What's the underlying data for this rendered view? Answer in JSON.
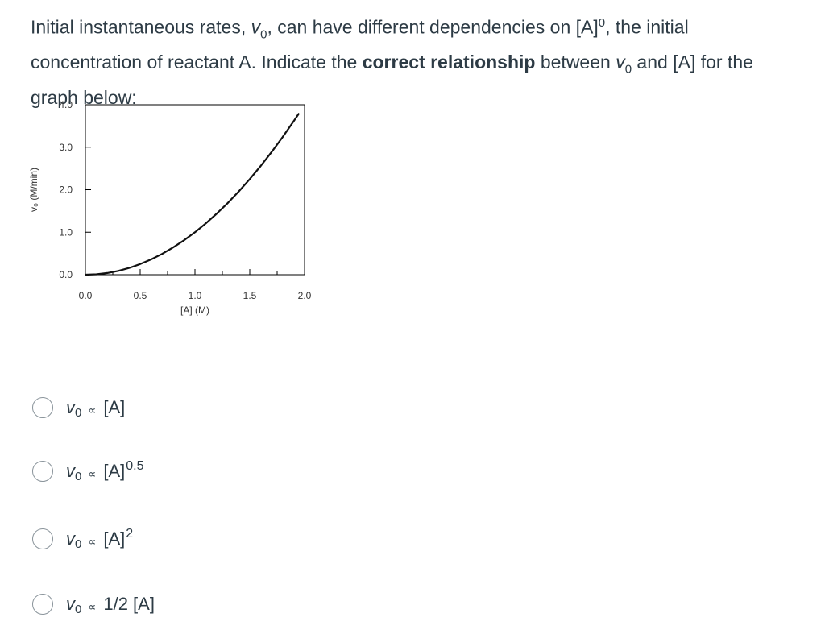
{
  "question": {
    "part1": "Initial instantaneous rates, ",
    "v_symbol": "v",
    "v_sub": "0",
    "part2": ", can have different dependencies on [A]",
    "part2_sup": "0",
    "part3": ", the initial concentration of reactant A. Indicate the ",
    "bold": "correct relationship",
    "part4": " between ",
    "part5": " and [A] for the graph below:"
  },
  "chart_data": {
    "type": "line",
    "xlabel": "[A] (M)",
    "ylabel": "v₀ (M/min)",
    "xlim": [
      0,
      2.0
    ],
    "ylim": [
      0,
      4.0
    ],
    "xticks": [
      "0.0",
      "0.5",
      "1.0",
      "1.5",
      "2.0"
    ],
    "yticks": [
      "0.0",
      "1.0",
      "2.0",
      "3.0",
      "4.0"
    ],
    "series": [
      {
        "x": [
          0.0,
          0.1,
          0.2,
          0.3,
          0.4,
          0.5,
          0.6,
          0.7,
          0.8,
          0.9,
          1.0,
          1.1,
          1.2,
          1.3,
          1.4,
          1.5,
          1.6,
          1.7,
          1.8,
          1.9,
          1.95
        ],
        "y": [
          0.0,
          0.01,
          0.04,
          0.09,
          0.16,
          0.25,
          0.36,
          0.49,
          0.64,
          0.81,
          1.0,
          1.21,
          1.44,
          1.69,
          1.96,
          2.25,
          2.56,
          2.89,
          3.24,
          3.61,
          3.8
        ]
      }
    ],
    "colors": {
      "line": "#111111",
      "axis": "#000000",
      "tick_text": "#333333"
    }
  },
  "answers": [
    {
      "symbol": "v",
      "sub": "0",
      "prop": "∝",
      "rhs": "[A]",
      "sup": ""
    },
    {
      "symbol": "v",
      "sub": "0",
      "prop": "∝",
      "rhs": "[A]",
      "sup": "0.5"
    },
    {
      "symbol": "v",
      "sub": "0",
      "prop": "∝",
      "rhs": "[A]",
      "sup": "2"
    },
    {
      "symbol": "v",
      "sub": "0",
      "prop": "∝",
      "rhs": "1/2 [A]",
      "sup": ""
    }
  ]
}
